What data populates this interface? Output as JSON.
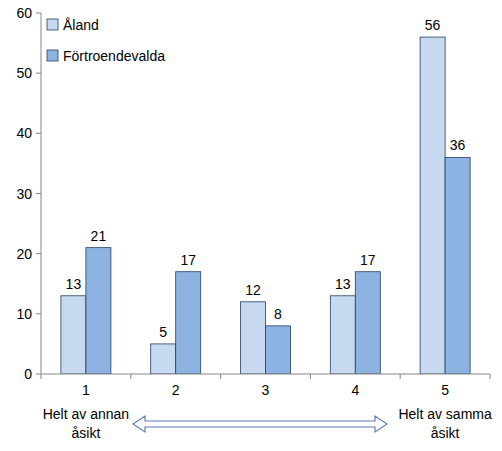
{
  "chart_data": {
    "type": "bar",
    "categories": [
      "1",
      "2",
      "3",
      "4",
      "5"
    ],
    "series": [
      {
        "name": "Åland",
        "color": "#c6d9f1",
        "values": [
          13,
          5,
          12,
          13,
          56
        ]
      },
      {
        "name": "Förtroendevalda",
        "color": "#8db3e2",
        "values": [
          21,
          17,
          8,
          17,
          36
        ]
      }
    ],
    "ylim": [
      0,
      60
    ],
    "yticks": [
      0,
      10,
      20,
      30,
      40,
      50,
      60
    ],
    "grid": false,
    "legend": "upper left",
    "data_labels": true,
    "annotations": [
      "Helt av annan åsikt",
      "Helt av samma åsikt"
    ]
  }
}
